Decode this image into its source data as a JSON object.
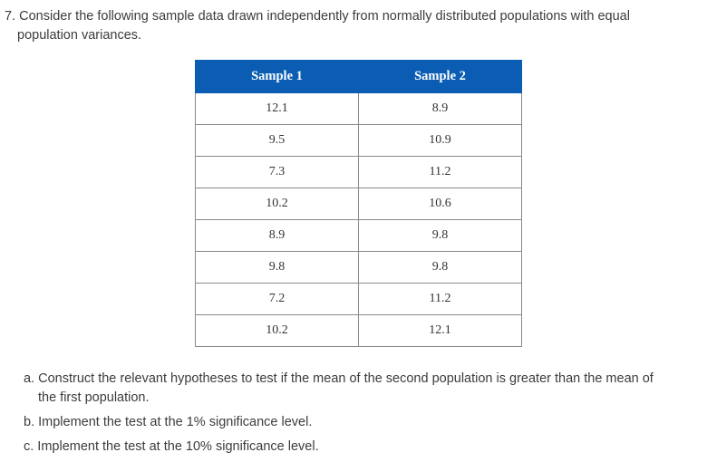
{
  "question": {
    "line1": "7. Consider the following sample data drawn independently from normally distributed populations with equal",
    "line2": "population variances."
  },
  "table": {
    "headers": [
      "Sample 1",
      "Sample 2"
    ],
    "rows": [
      [
        "12.1",
        "8.9"
      ],
      [
        "9.5",
        "10.9"
      ],
      [
        "7.3",
        "11.2"
      ],
      [
        "10.2",
        "10.6"
      ],
      [
        "8.9",
        "9.8"
      ],
      [
        "9.8",
        "9.8"
      ],
      [
        "7.2",
        "11.2"
      ],
      [
        "10.2",
        "12.1"
      ]
    ]
  },
  "parts": {
    "a_line1": "a. Construct the relevant hypotheses to test if the mean of the second population is greater than the mean of",
    "a_line2": "the first population.",
    "b": "b. Implement the test at the 1% significance level.",
    "c": "c. Implement the test at the 10% significance level."
  }
}
